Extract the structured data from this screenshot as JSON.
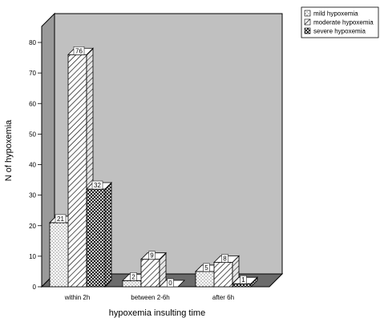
{
  "chart_data": {
    "type": "bar",
    "xlabel": "hypoxemia insulting time",
    "ylabel": "N of hypoxemia",
    "ylim": [
      0,
      80
    ],
    "yticks": [
      0,
      10,
      20,
      30,
      40,
      50,
      60,
      70,
      80
    ],
    "categories": [
      "within 2h",
      "between 2-6h",
      "after 6h"
    ],
    "series": [
      {
        "name": "mild hypoxemia",
        "values": [
          21,
          2,
          5
        ],
        "value_labels": [
          "21",
          "2",
          "5"
        ]
      },
      {
        "name": "moderate hypoxemia",
        "values": [
          76,
          9,
          8
        ],
        "value_labels": [
          "76",
          "9",
          "8"
        ]
      },
      {
        "name": "severe hypoxemia",
        "values": [
          32,
          0,
          1
        ],
        "value_labels": [
          "32",
          "0",
          "1"
        ]
      }
    ],
    "legend_position": "top-right",
    "three_d": true,
    "colors": {
      "wall": "#c0c0c0",
      "floor": "#6b6b6b",
      "side": "#bdbdbd",
      "frame": "#000000",
      "bar": "#ffffff"
    }
  }
}
